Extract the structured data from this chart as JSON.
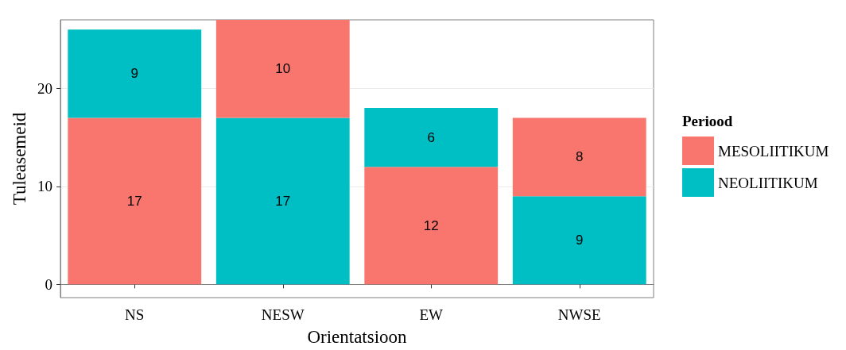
{
  "chart_data": {
    "type": "bar",
    "stacked": true,
    "xlabel": "Orientatsioon",
    "ylabel": "Tuleasemeid",
    "legend_title": "Periood",
    "legend": "right",
    "categories": [
      "NS",
      "NESW",
      "EW",
      "NWSE"
    ],
    "series": [
      {
        "name": "MESOLIITIKUM",
        "color": "#f8766d",
        "values": [
          17,
          null,
          12,
          null
        ]
      },
      {
        "name": "NEOLIITIKUM",
        "color": "#00bfc4",
        "values": [
          9,
          17,
          6,
          9
        ]
      },
      {
        "color": "#f8766d",
        "values": [
          null,
          10,
          null,
          8
        ]
      }
    ],
    "ylim": [
      -1.35,
      27
    ],
    "yticks": [
      0,
      10,
      20
    ],
    "grid": "y",
    "data_labels": true
  }
}
